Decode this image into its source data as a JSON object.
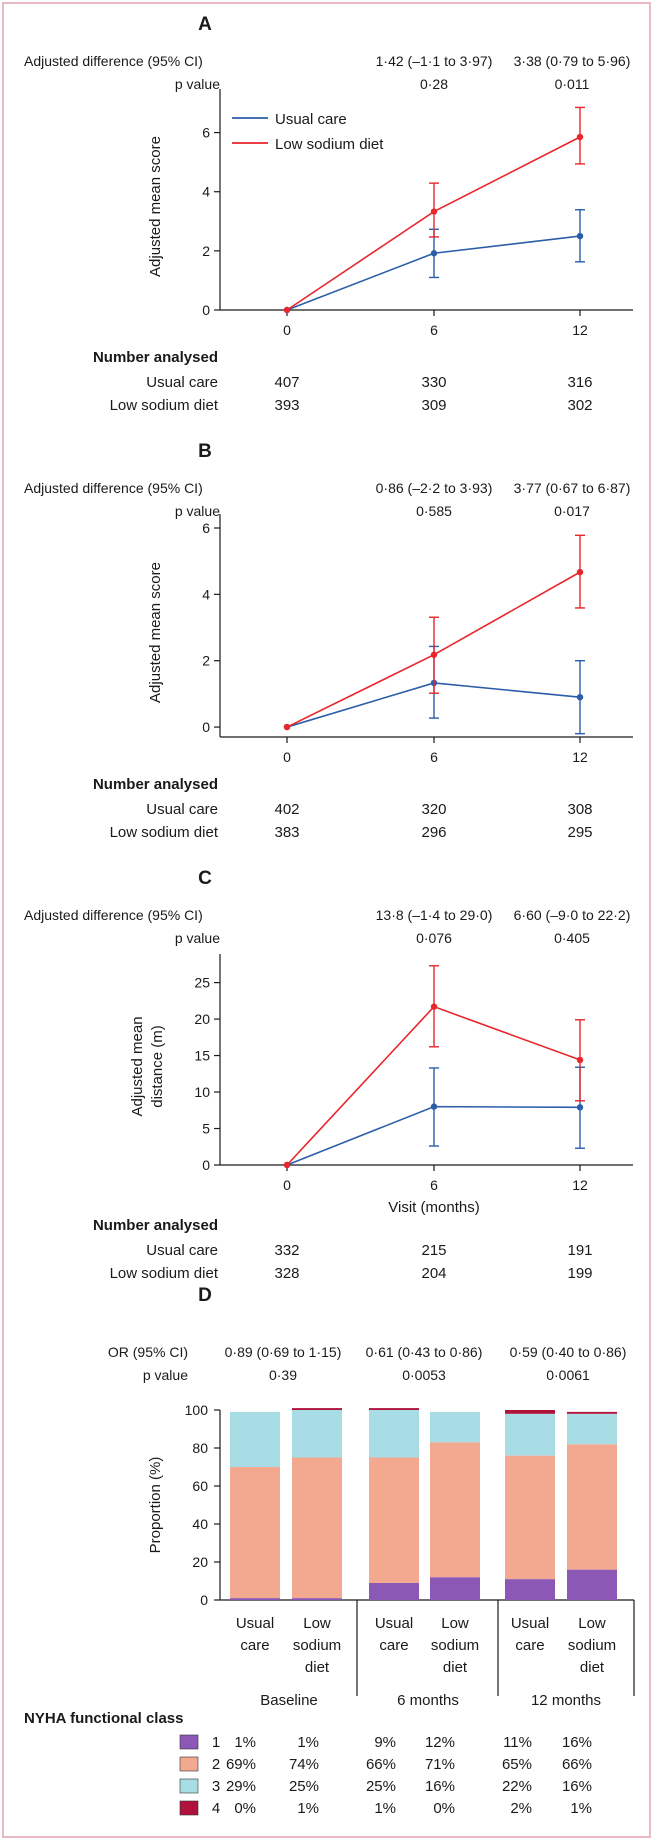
{
  "colors": {
    "usual": "#2a5ea8",
    "low": "#e8262c",
    "frame": "#e4a2ad",
    "nyha1": "#8b59b5",
    "nyha2": "#f3a98f",
    "nyha3": "#a9dde6",
    "nyha4": "#b0123c"
  },
  "common": {
    "adj_label": "Adjusted difference (95% CI)",
    "p_label": "p value",
    "number_analysed": "Number analysed",
    "usual_label": "Usual care",
    "low_label": "Low sodium diet",
    "xlabel": "Visit (months)"
  },
  "panels": [
    {
      "letter": "A",
      "ylabel": "Adjusted mean score",
      "ylabel_lines": [
        "Adjusted mean score"
      ],
      "adj": [
        "1·42 (–1·1 to 3·97)",
        "3·38 (0·79 to 5·96)"
      ],
      "p": [
        "0·28",
        "0·011"
      ],
      "show_legend": true,
      "show_xlabel": false,
      "n_usual": [
        "407",
        "330",
        "316"
      ],
      "n_low": [
        "393",
        "309",
        "302"
      ]
    },
    {
      "letter": "B",
      "ylabel": "Adjusted mean score",
      "ylabel_lines": [
        "Adjusted mean score"
      ],
      "adj": [
        "0·86 (–2·2 to 3·93)",
        "3·77 (0·67 to 6·87)"
      ],
      "p": [
        "0·585",
        "0·017"
      ],
      "show_legend": false,
      "show_xlabel": false,
      "n_usual": [
        "402",
        "320",
        "308"
      ],
      "n_low": [
        "383",
        "296",
        "295"
      ]
    },
    {
      "letter": "C",
      "ylabel": "Adjusted mean distance (m)",
      "ylabel_lines": [
        "Adjusted mean",
        "distance (m)"
      ],
      "adj": [
        "13·8 (–1·4 to 29·0)",
        "6·60 (–9·0 to 22·2)"
      ],
      "p": [
        "0·076",
        "0·405"
      ],
      "show_legend": false,
      "show_xlabel": true,
      "n_usual": [
        "332",
        "215",
        "191"
      ],
      "n_low": [
        "328",
        "204",
        "199"
      ]
    }
  ],
  "panel_d": {
    "letter": "D",
    "or_label": "OR (95% CI)",
    "p_label": "p value",
    "or_values": [
      "0·89 (0·69 to 1·15)",
      "0·61 (0·43 to 0·86)",
      "0·59 (0·40 to 0·86)"
    ],
    "p_values": [
      "0·39",
      "0·0053",
      "0·0061"
    ],
    "ylabel": "Proportion (%)",
    "bar_labels": [
      [
        "Usual",
        "care"
      ],
      [
        "Low",
        "sodium",
        "diet"
      ],
      [
        "Usual",
        "care"
      ],
      [
        "Low",
        "sodium",
        "diet"
      ],
      [
        "Usual",
        "care"
      ],
      [
        "Low",
        "sodium",
        "diet"
      ]
    ],
    "group_labels": [
      "Baseline",
      "6 months",
      "12 months"
    ],
    "legend_title": "NYHA functional class",
    "class_labels": [
      "1",
      "2",
      "3",
      "4"
    ],
    "table": [
      [
        "1%",
        "1%",
        "9%",
        "12%",
        "11%",
        "16%"
      ],
      [
        "69%",
        "74%",
        "66%",
        "71%",
        "65%",
        "66%"
      ],
      [
        "29%",
        "25%",
        "25%",
        "16%",
        "22%",
        "16%"
      ],
      [
        "0%",
        "1%",
        "1%",
        "0%",
        "2%",
        "1%"
      ]
    ]
  },
  "chart_data": [
    {
      "type": "line",
      "panel": "A",
      "title": "A",
      "xlabel": "",
      "ylabel": "Adjusted mean score",
      "x": [
        0,
        6,
        12
      ],
      "xticks": [
        0,
        6,
        12
      ],
      "ylim": [
        0,
        7
      ],
      "yticks": [
        0,
        2,
        4,
        6
      ],
      "legend": "top-left",
      "series": [
        {
          "name": "Usual care",
          "values": [
            0,
            1.92,
            2.5
          ],
          "lower": [
            0,
            1.1,
            1.63
          ],
          "upper": [
            0,
            2.73,
            3.39
          ]
        },
        {
          "name": "Low sodium diet",
          "values": [
            0,
            3.33,
            5.85
          ],
          "lower": [
            0,
            2.47,
            4.94
          ],
          "upper": [
            0,
            4.29,
            6.85
          ]
        }
      ]
    },
    {
      "type": "line",
      "panel": "B",
      "title": "B",
      "xlabel": "",
      "ylabel": "Adjusted mean score",
      "x": [
        0,
        6,
        12
      ],
      "xticks": [
        0,
        6,
        12
      ],
      "ylim": [
        -0.3,
        6
      ],
      "yticks": [
        0,
        2,
        4,
        6
      ],
      "series": [
        {
          "name": "Usual care",
          "values": [
            0,
            1.33,
            0.9
          ],
          "lower": [
            0,
            0.27,
            -0.2
          ],
          "upper": [
            0,
            2.43,
            2.0
          ]
        },
        {
          "name": "Low sodium diet",
          "values": [
            0,
            2.18,
            4.67
          ],
          "lower": [
            0,
            1.02,
            3.59
          ],
          "upper": [
            0,
            3.31,
            5.78
          ]
        }
      ]
    },
    {
      "type": "line",
      "panel": "C",
      "title": "C",
      "xlabel": "Visit (months)",
      "ylabel": "Adjusted mean distance (m)",
      "x": [
        0,
        6,
        12
      ],
      "xticks": [
        0,
        6,
        12
      ],
      "ylim": [
        0,
        27
      ],
      "yticks": [
        0,
        5,
        10,
        15,
        20,
        25
      ],
      "series": [
        {
          "name": "Usual care",
          "values": [
            0,
            8.0,
            7.9
          ],
          "lower": [
            0,
            2.6,
            2.3
          ],
          "upper": [
            0,
            13.3,
            13.4
          ]
        },
        {
          "name": "Low sodium diet",
          "values": [
            0,
            21.7,
            14.4
          ],
          "lower": [
            0,
            16.2,
            8.8
          ],
          "upper": [
            0,
            27.3,
            19.9
          ]
        }
      ]
    },
    {
      "type": "bar",
      "stacked": true,
      "panel": "D",
      "title": "D",
      "ylabel": "Proportion (%)",
      "ylim": [
        0,
        100
      ],
      "yticks": [
        0,
        20,
        40,
        60,
        80,
        100
      ],
      "categories": [
        "Baseline Usual care",
        "Baseline Low sodium diet",
        "6 months Usual care",
        "6 months Low sodium diet",
        "12 months Usual care",
        "12 months Low sodium diet"
      ],
      "series": [
        {
          "name": "NYHA class 1",
          "values": [
            1,
            1,
            9,
            12,
            11,
            16
          ]
        },
        {
          "name": "NYHA class 2",
          "values": [
            69,
            74,
            66,
            71,
            65,
            66
          ]
        },
        {
          "name": "NYHA class 3",
          "values": [
            29,
            25,
            25,
            16,
            22,
            16
          ]
        },
        {
          "name": "NYHA class 4",
          "values": [
            0,
            1,
            1,
            0,
            2,
            1
          ]
        }
      ]
    }
  ]
}
